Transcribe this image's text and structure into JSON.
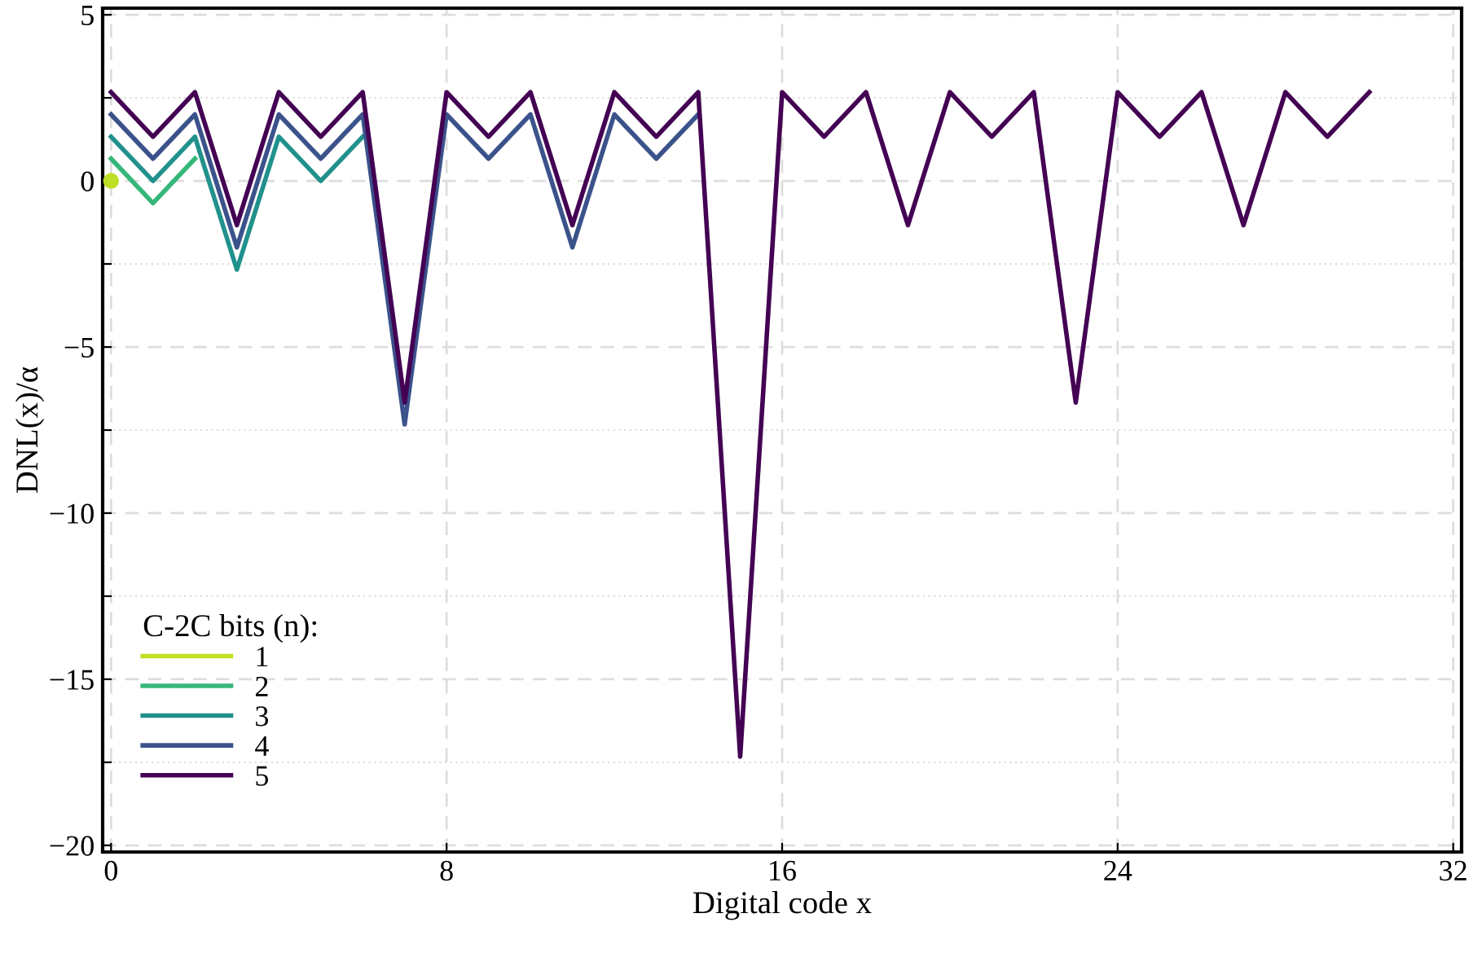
{
  "chart_data": {
    "type": "line",
    "xlabel": "Digital code x",
    "ylabel": "DNL(x)/α",
    "legend_title": "C-2C bits (n):",
    "xlim": [
      -0.2,
      32.2
    ],
    "ylim": [
      -20.2,
      5.2
    ],
    "xticks": [
      0,
      8,
      16,
      24,
      32
    ],
    "yticks": [
      {
        "value": -20,
        "label": "−20"
      },
      {
        "value": -17.5,
        "label": null
      },
      {
        "value": -15,
        "label": "−15"
      },
      {
        "value": -12.5,
        "label": null
      },
      {
        "value": -10,
        "label": "−10"
      },
      {
        "value": -7.5,
        "label": null
      },
      {
        "value": -5,
        "label": "−5"
      },
      {
        "value": -2.5,
        "label": null
      },
      0,
      {
        "value": 2.5,
        "label": null
      },
      5
    ],
    "grid": true,
    "legend": "bottom left",
    "line_style": "solid",
    "series": [
      {
        "name": "1",
        "color": "#bddf26",
        "marker": "circle",
        "x": [
          0
        ],
        "values": [
          0
        ]
      },
      {
        "name": "2",
        "color": "#35b779",
        "x": [
          0,
          1,
          2
        ],
        "values": [
          0.67,
          -0.67,
          0.67
        ]
      },
      {
        "name": "3",
        "color": "#21918c",
        "x": [
          0,
          1,
          2,
          3,
          4,
          5,
          6
        ],
        "values": [
          1.33,
          0,
          1.33,
          -2.67,
          1.33,
          0,
          1.33
        ]
      },
      {
        "name": "4",
        "color": "#3b528b",
        "x": [
          0,
          1,
          2,
          3,
          4,
          5,
          6,
          7,
          8,
          9,
          10,
          11,
          12,
          13,
          14
        ],
        "values": [
          2,
          0.67,
          2,
          -2,
          2,
          0.67,
          2,
          -7.33,
          2,
          0.67,
          2,
          -2,
          2,
          0.67,
          2
        ]
      },
      {
        "name": "5",
        "color": "#440154",
        "x": [
          0,
          1,
          2,
          3,
          4,
          5,
          6,
          7,
          8,
          9,
          10,
          11,
          12,
          13,
          14,
          15,
          16,
          17,
          18,
          19,
          20,
          21,
          22,
          23,
          24,
          25,
          26,
          27,
          28,
          29,
          30
        ],
        "values": [
          2.67,
          1.33,
          2.67,
          -1.33,
          2.67,
          1.33,
          2.67,
          -6.67,
          2.67,
          1.33,
          2.67,
          -1.33,
          2.67,
          1.33,
          2.67,
          -17.33,
          2.67,
          1.33,
          2.67,
          -1.33,
          2.67,
          1.33,
          2.67,
          -6.67,
          2.67,
          1.33,
          2.67,
          -1.33,
          2.67,
          1.33,
          2.67
        ]
      }
    ]
  }
}
